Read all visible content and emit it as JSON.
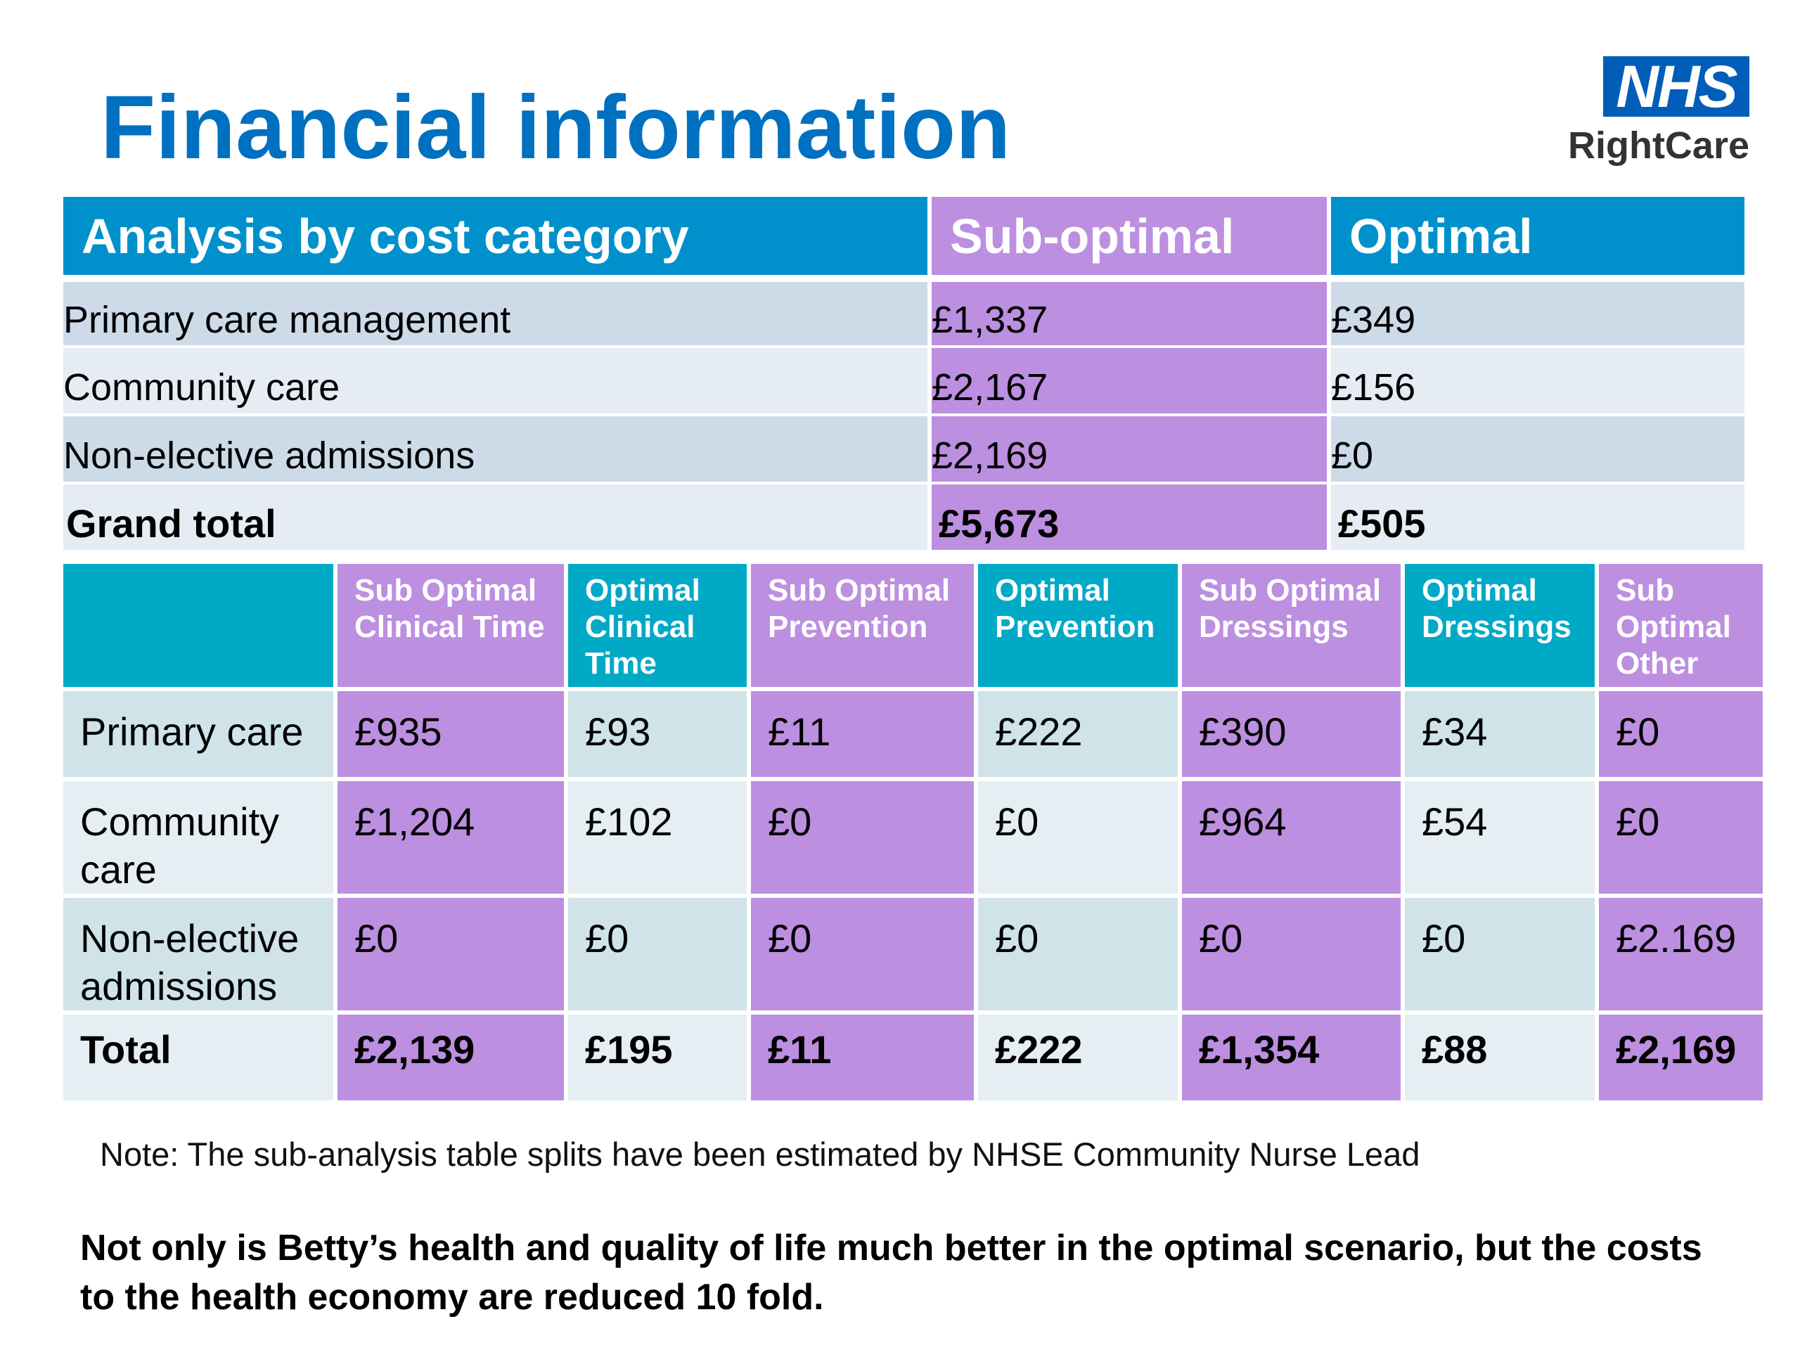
{
  "title": "Financial information",
  "logo": {
    "brand": "NHS",
    "subtitle": "RightCare"
  },
  "colors": {
    "title": "#0070c0",
    "nhs_blue": "#005eb8",
    "header_blue": "#0091cc",
    "header_teal": "#00a9c6",
    "purple": "#bc8fe0",
    "row_light_blue": "#cddbe9",
    "row_lighter_blue": "#e5ecf3",
    "breakdown_row_a": "#cfe3e9",
    "breakdown_row_b": "#e5eef3"
  },
  "summary_table": {
    "headers": [
      "Analysis by cost category",
      "Sub-optimal",
      "Optimal"
    ],
    "rows": [
      {
        "label": "Primary care management",
        "sub_optimal": "£1,337",
        "optimal": "£349"
      },
      {
        "label": "Community care",
        "sub_optimal": "£2,167",
        "optimal": "£156"
      },
      {
        "label": "Non-elective admissions",
        "sub_optimal": "£2,169",
        "optimal": "£0"
      }
    ],
    "total": {
      "label": "Grand total",
      "sub_optimal": "£5,673",
      "optimal": "£505"
    }
  },
  "breakdown_table": {
    "headers": [
      "",
      "Sub Optimal Clinical Time",
      "Optimal Clinical Time",
      "Sub Optimal Prevention",
      "Optimal Prevention",
      "Sub Optimal Dressings",
      "Optimal Dressings",
      "Sub Optimal Other"
    ],
    "rows": [
      {
        "label": "Primary care",
        "values": [
          "£935",
          "£93",
          "£11",
          "£222",
          "£390",
          "£34",
          "£0"
        ]
      },
      {
        "label": "Community care",
        "values": [
          "£1,204",
          "£102",
          "£0",
          "£0",
          "£964",
          "£54",
          "£0"
        ]
      },
      {
        "label": "Non-elective admissions",
        "values": [
          "£0",
          "£0",
          "£0",
          "£0",
          "£0",
          "£0",
          "£2.169"
        ]
      }
    ],
    "total": {
      "label": "Total",
      "values": [
        "£2,139",
        "£195",
        "£11",
        "£222",
        "£1,354",
        "£88",
        "£2,169"
      ]
    }
  },
  "note": "Note: The sub-analysis table splits have been estimated by NHSE Community Nurse Lead",
  "conclusion": "Not only is Betty’s health and quality of life much better in the optimal scenario, but the costs to the health economy are reduced 10 fold."
}
